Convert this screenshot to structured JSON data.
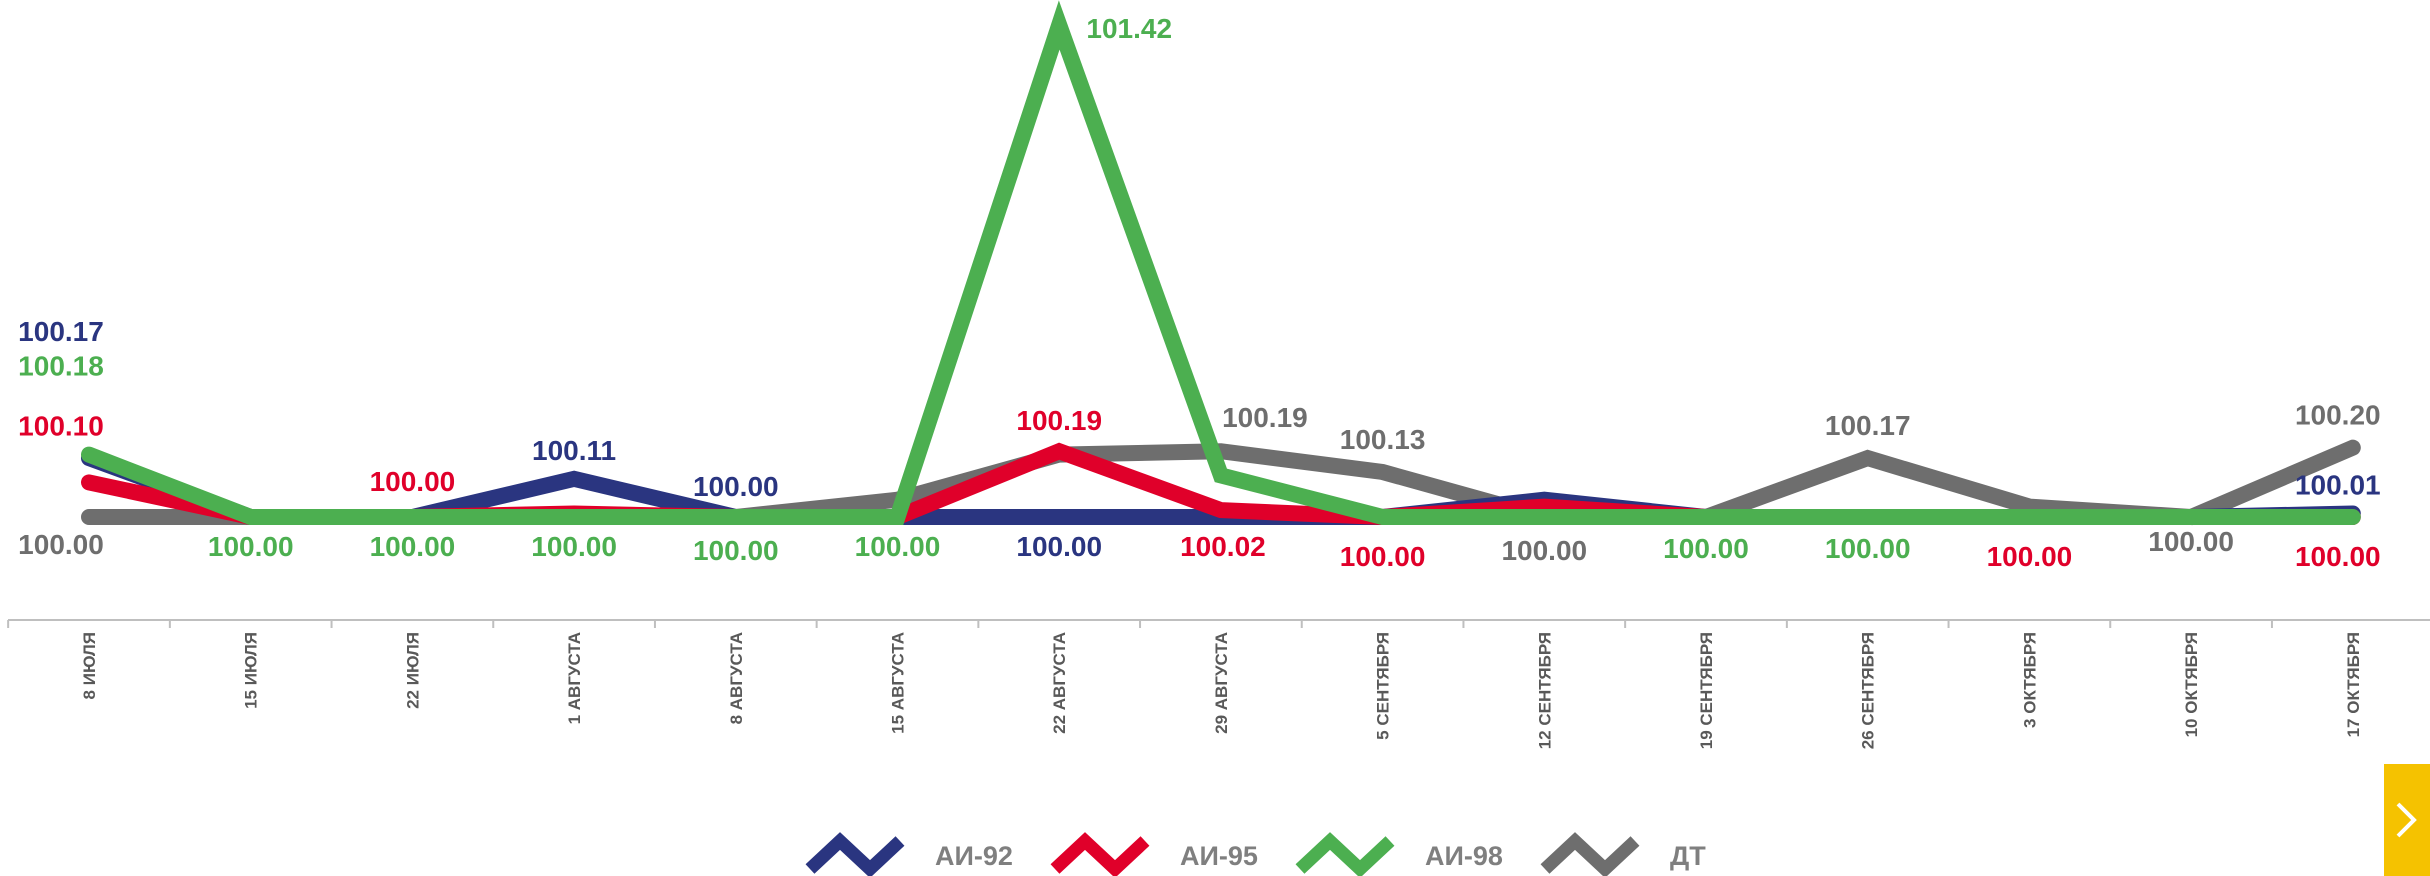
{
  "chart_data": {
    "type": "line",
    "categories": [
      "8 ИЮЛЯ",
      "15 ИЮЛЯ",
      "22 ИЮЛЯ",
      "1 АВГУСТА",
      "8 АВГУСТА",
      "15 АВГУСТА",
      "22 АВГУСТА",
      "29 АВГУСТА",
      "5 СЕНТЯБРЯ",
      "12 СЕНТЯБРЯ",
      "19 СЕНТЯБРЯ",
      "26 СЕНТЯБРЯ",
      "3 ОКТЯБРЯ",
      "10 ОКТЯБРЯ",
      "17 ОКТЯБРЯ"
    ],
    "series": [
      {
        "name": "АИ-92",
        "color": "#2a3580",
        "values": [
          100.17,
          100.0,
          100.0,
          100.11,
          100.0,
          100.0,
          100.0,
          100.0,
          100.0,
          100.05,
          100.0,
          100.0,
          100.0,
          100.0,
          100.01
        ],
        "labels": [
          "100.17",
          "",
          "",
          "100.11",
          "100.00",
          "",
          "100.00",
          "",
          "",
          "",
          "",
          "",
          "",
          "",
          "100.01"
        ]
      },
      {
        "name": "АИ-95",
        "color": "#e0002a",
        "values": [
          100.1,
          100.0,
          100.0,
          100.01,
          100.0,
          100.0,
          100.19,
          100.02,
          100.0,
          100.03,
          100.0,
          100.0,
          100.0,
          100.0,
          100.0
        ],
        "labels": [
          "100.10",
          "",
          "100.00",
          "",
          "",
          "",
          "100.19",
          "100.02",
          "100.00",
          "",
          "",
          "",
          "100.00",
          "",
          "100.00"
        ]
      },
      {
        "name": "АИ-98",
        "color": "#4caf50",
        "values": [
          100.18,
          100.0,
          100.0,
          100.0,
          100.0,
          100.0,
          101.42,
          100.12,
          100.0,
          100.0,
          100.0,
          100.0,
          100.0,
          100.0,
          100.0
        ],
        "labels": [
          "100.18",
          "100.00",
          "100.00",
          "100.00",
          "100.00",
          "100.00",
          "101.42",
          "",
          "",
          "",
          "100.00",
          "100.00",
          "",
          "",
          ""
        ]
      },
      {
        "name": "ДТ",
        "color": "#6e6e6e",
        "values": [
          100.0,
          100.0,
          100.0,
          100.0,
          100.0,
          100.05,
          100.18,
          100.19,
          100.13,
          100.0,
          100.0,
          100.17,
          100.03,
          100.0,
          100.2
        ],
        "labels": [
          "100.00",
          "",
          "",
          "",
          "",
          "",
          "",
          "100.19",
          "100.13",
          "100.00",
          "",
          "100.17",
          "",
          "100.00",
          "100.20"
        ]
      }
    ],
    "ylim": [
      100.0,
      101.42
    ],
    "grid": false,
    "legend_position": "bottom"
  },
  "ui": {
    "next_icon": "chevron-right-icon",
    "next_button_color": "#f5c200"
  }
}
